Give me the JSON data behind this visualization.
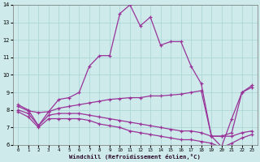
{
  "xlabel": "Windchill (Refroidissement éolien,°C)",
  "bg_color": "#ceeaea",
  "grid_color": "#a8d4d4",
  "line_color": "#993399",
  "xlim": [
    -0.5,
    23.5
  ],
  "ylim": [
    6,
    14
  ],
  "yticks": [
    6,
    7,
    8,
    9,
    10,
    11,
    12,
    13,
    14
  ],
  "xticks": [
    0,
    1,
    2,
    3,
    4,
    5,
    6,
    7,
    8,
    9,
    10,
    11,
    12,
    13,
    14,
    15,
    16,
    17,
    18,
    19,
    20,
    21,
    22,
    23
  ],
  "line1_x": [
    0,
    1,
    2,
    3,
    4,
    5,
    6,
    7,
    8,
    9,
    10,
    11,
    12,
    13,
    14,
    15,
    16,
    17,
    18,
    19,
    20,
    21,
    22,
    23
  ],
  "line1_y": [
    8.3,
    8.0,
    7.1,
    7.9,
    8.6,
    8.7,
    9.0,
    10.5,
    11.1,
    11.1,
    13.5,
    14.0,
    12.8,
    13.3,
    11.7,
    11.9,
    11.9,
    10.5,
    9.5,
    6.5,
    5.9,
    7.5,
    9.0,
    9.4
  ],
  "line2_x": [
    0,
    1,
    2,
    3,
    4,
    5,
    6,
    7,
    8,
    9,
    10,
    11,
    12,
    13,
    14,
    15,
    16,
    17,
    18,
    19,
    20,
    21,
    22,
    23
  ],
  "line2_y": [
    8.2,
    7.95,
    7.85,
    7.9,
    8.1,
    8.2,
    8.3,
    8.4,
    8.5,
    8.6,
    8.65,
    8.7,
    8.7,
    8.8,
    8.8,
    8.85,
    8.9,
    9.0,
    9.1,
    6.5,
    6.5,
    6.7,
    9.0,
    9.3
  ],
  "line3_x": [
    0,
    1,
    2,
    3,
    4,
    5,
    6,
    7,
    8,
    9,
    10,
    11,
    12,
    13,
    14,
    15,
    16,
    17,
    18,
    19,
    20,
    21,
    22,
    23
  ],
  "line3_y": [
    8.0,
    7.8,
    7.1,
    7.7,
    7.8,
    7.8,
    7.8,
    7.7,
    7.6,
    7.5,
    7.4,
    7.3,
    7.2,
    7.1,
    7.0,
    6.9,
    6.8,
    6.8,
    6.7,
    6.5,
    6.5,
    6.5,
    6.7,
    6.8
  ],
  "line4_x": [
    0,
    1,
    2,
    3,
    4,
    5,
    6,
    7,
    8,
    9,
    10,
    11,
    12,
    13,
    14,
    15,
    16,
    17,
    18,
    19,
    20,
    21,
    22,
    23
  ],
  "line4_y": [
    7.9,
    7.6,
    7.0,
    7.5,
    7.5,
    7.5,
    7.5,
    7.4,
    7.2,
    7.1,
    7.0,
    6.8,
    6.7,
    6.6,
    6.5,
    6.4,
    6.3,
    6.3,
    6.2,
    6.1,
    5.85,
    6.1,
    6.4,
    6.6
  ]
}
